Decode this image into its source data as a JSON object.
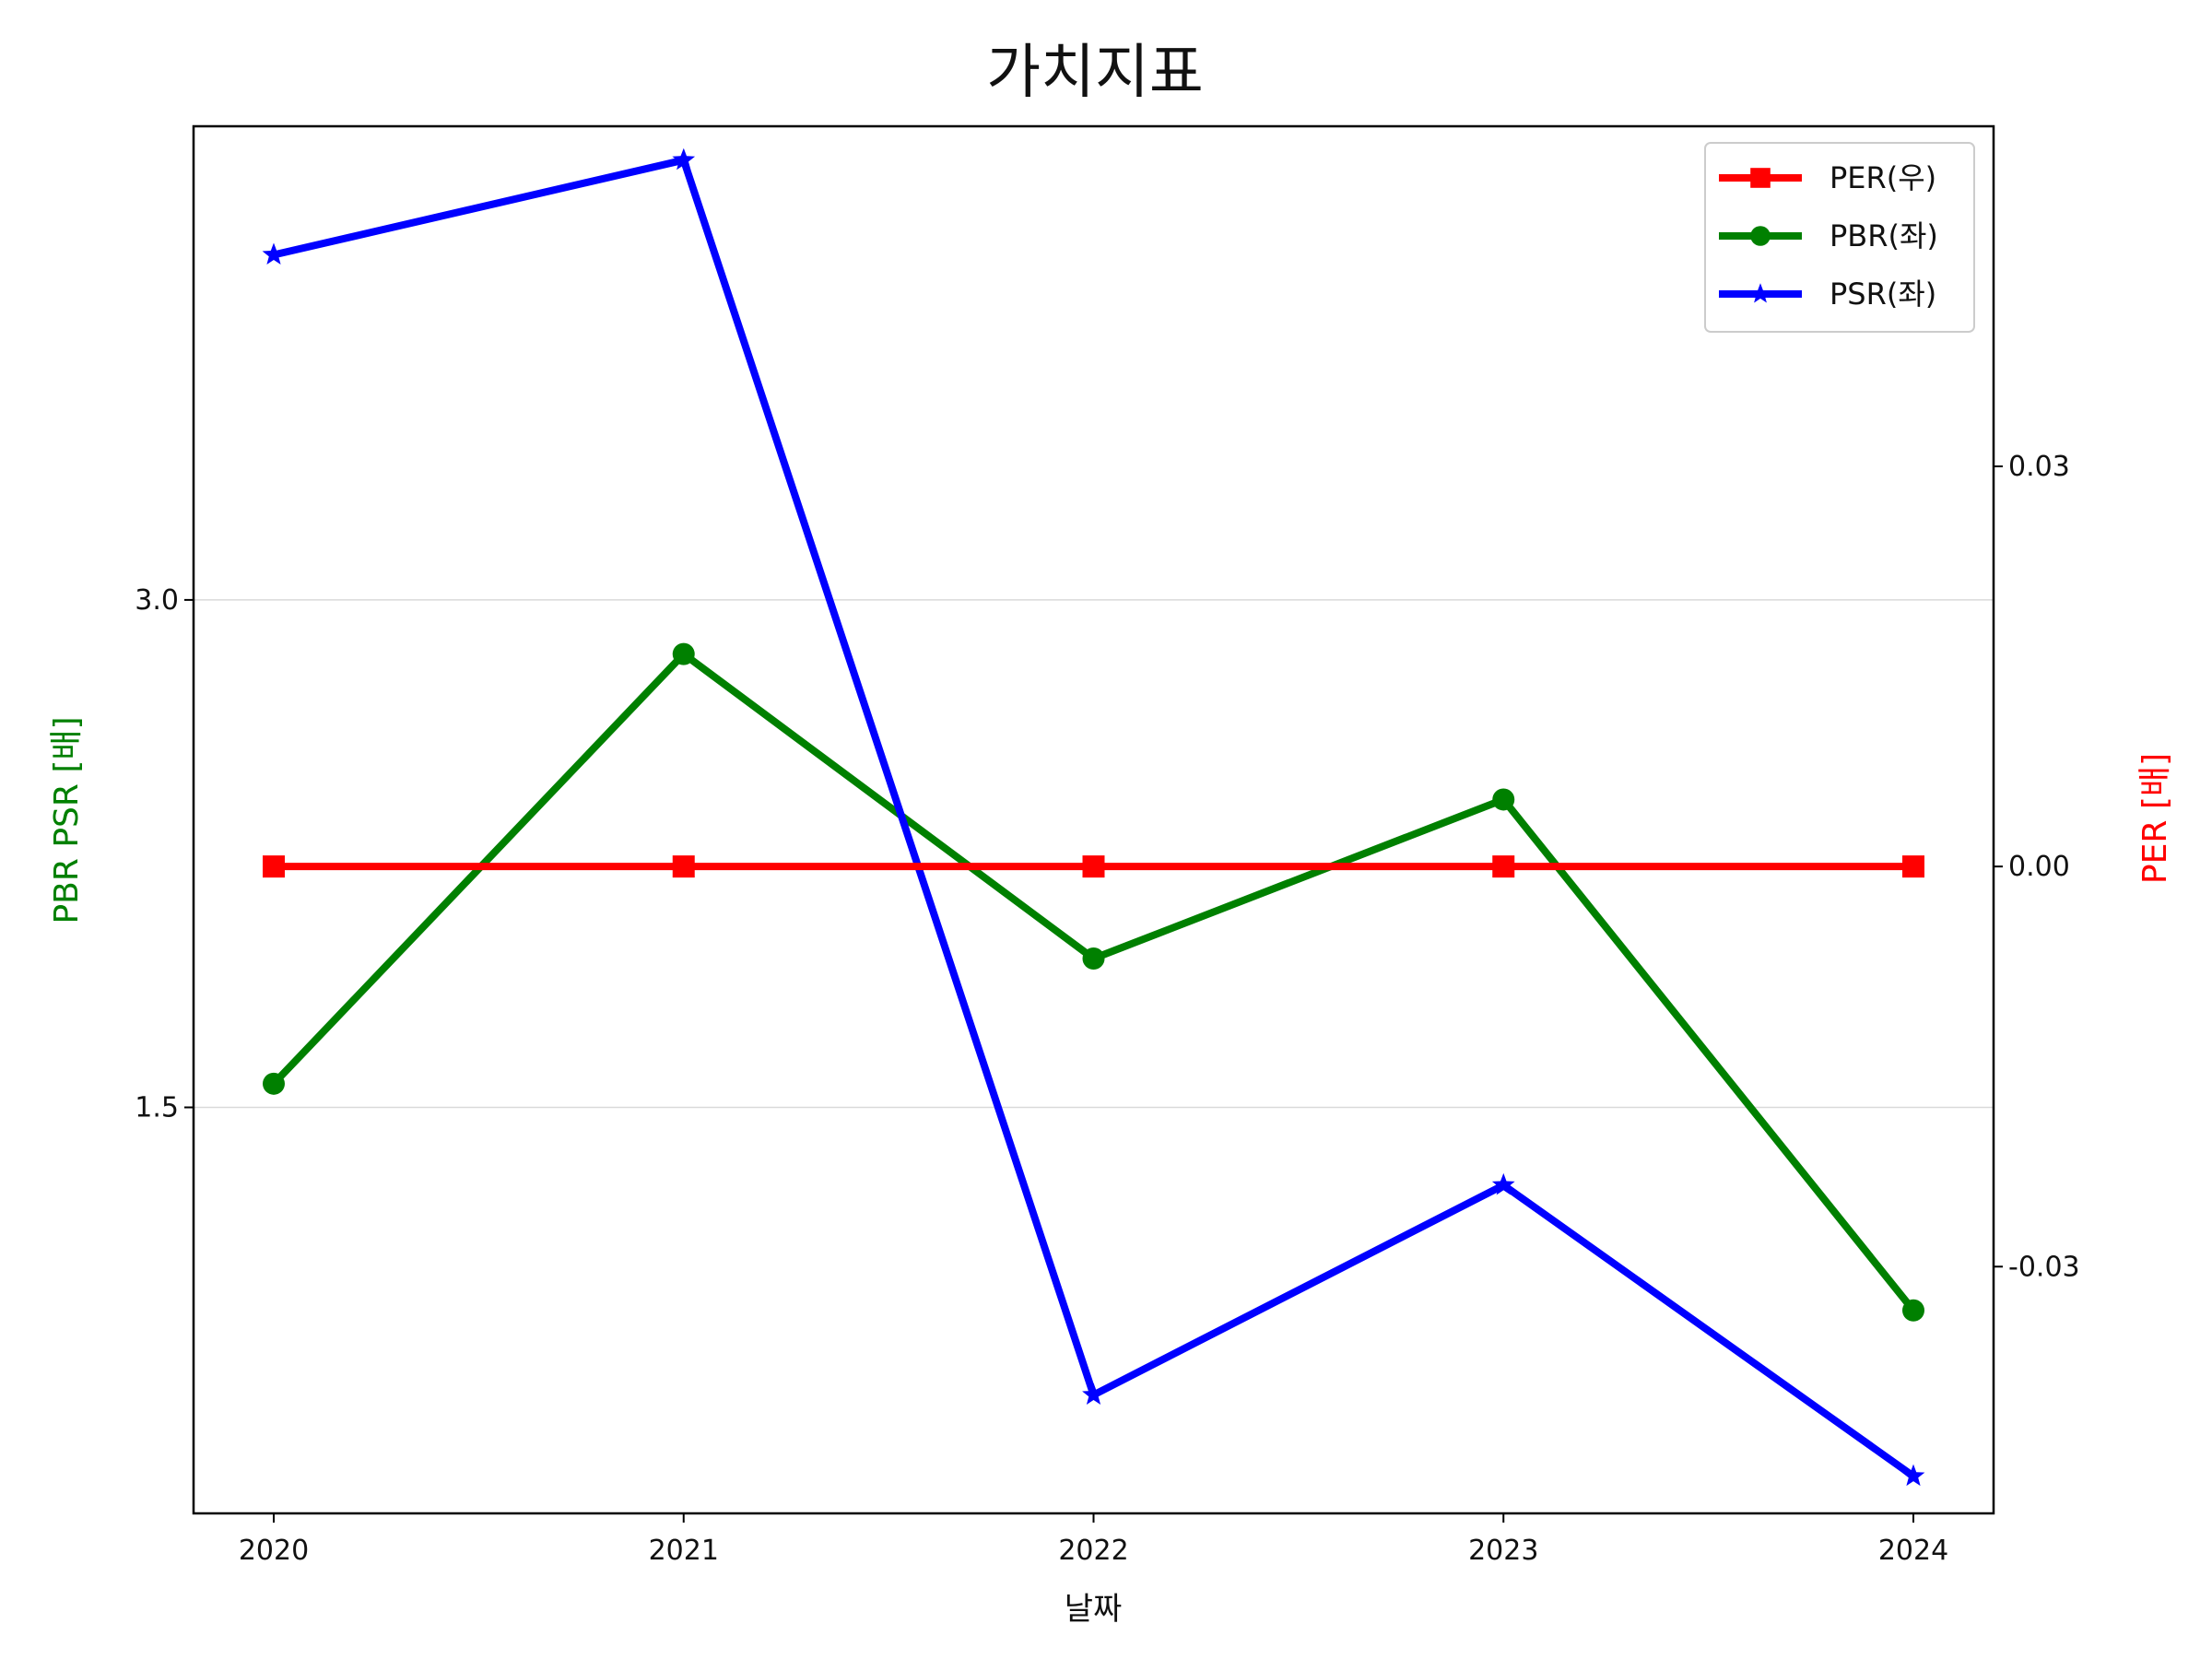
{
  "chart_data": {
    "type": "line",
    "title": "가치지표",
    "xlabel": "날짜",
    "categories": [
      "2020",
      "2021",
      "2022",
      "2023",
      "2024"
    ],
    "left_axis": {
      "label": "PBR PSR [배]",
      "label_color": "#008000",
      "range": [
        0.3,
        4.4
      ],
      "ticks": [
        1.5,
        3.0
      ],
      "tick_labels": [
        "1.5",
        "3.0"
      ],
      "grid": true
    },
    "right_axis": {
      "label": "PER [배]",
      "label_color": "#ff0000",
      "range": [
        -0.0485,
        0.0555
      ],
      "ticks": [
        -0.03,
        0.0,
        0.03
      ],
      "tick_labels": [
        "-0.03",
        "0.00",
        "0.03"
      ]
    },
    "series": [
      {
        "name": "PER(우)",
        "axis": "right",
        "color": "#ff0000",
        "marker": "square",
        "values": [
          0.0,
          0.0,
          0.0,
          0.0,
          0.0
        ]
      },
      {
        "name": "PBR(좌)",
        "axis": "left",
        "color": "#008000",
        "marker": "circle",
        "values": [
          1.57,
          2.84,
          1.94,
          2.41,
          0.9
        ]
      },
      {
        "name": "PSR(좌)",
        "axis": "left",
        "color": "#0000ff",
        "marker": "star",
        "values": [
          4.02,
          4.3,
          0.65,
          1.27,
          0.41
        ]
      }
    ],
    "legend": {
      "position": "top-right"
    }
  }
}
